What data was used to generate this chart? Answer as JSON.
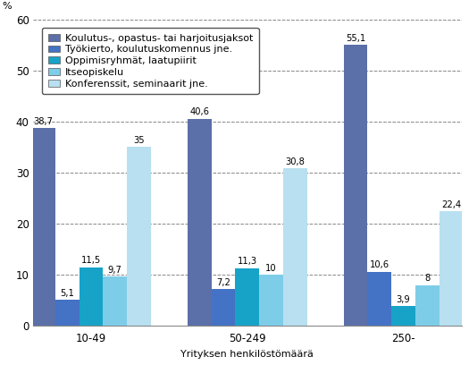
{
  "categories": [
    "10-49",
    "50-249",
    "250-"
  ],
  "series": [
    {
      "label": "Koulutus-, opastus- tai harjoitusjaksot",
      "values": [
        38.7,
        40.6,
        55.1
      ],
      "color": "#5b6fa8"
    },
    {
      "label": "Työkierto, koulutuskomennus jne.",
      "values": [
        5.1,
        7.2,
        10.6
      ],
      "color": "#4472c4"
    },
    {
      "label": "Oppimisryhmät, laatupiirit",
      "values": [
        11.5,
        11.3,
        3.9
      ],
      "color": "#17a3c8"
    },
    {
      "label": "Itseopiskelu",
      "values": [
        9.7,
        10.0,
        8.0
      ],
      "color": "#7ecde8"
    },
    {
      "label": "Konferenssit, seminaarit jne.",
      "values": [
        35.0,
        30.8,
        22.4
      ],
      "color": "#b8e0f0"
    }
  ],
  "ylabel": "%",
  "xlabel": "Yrityksen henkilöstömäärä",
  "ylim": [
    0,
    60
  ],
  "yticks": [
    0,
    10,
    20,
    30,
    40,
    50,
    60
  ],
  "bar_width": 0.115,
  "group_centers": [
    0.32,
    1.07,
    1.82
  ],
  "label_fontsize": 8,
  "tick_fontsize": 8.5,
  "legend_fontsize": 8.0,
  "value_fontsize": 7.2
}
